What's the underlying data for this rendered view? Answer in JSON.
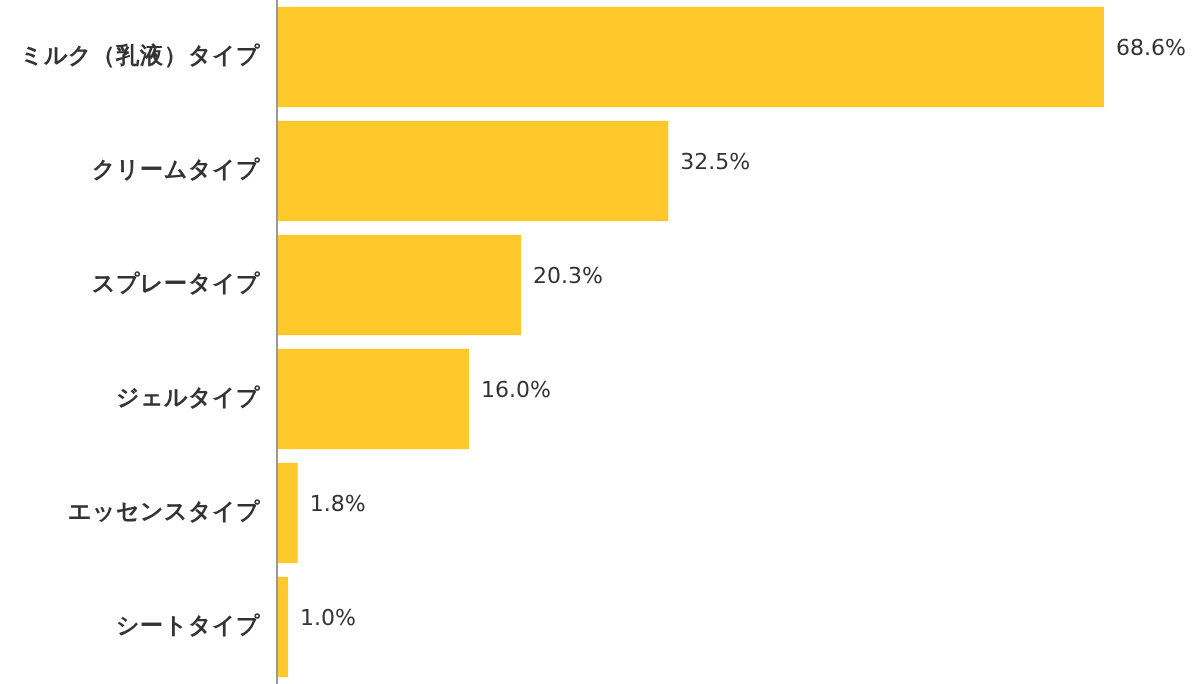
{
  "chart_data": {
    "type": "bar",
    "orientation": "horizontal",
    "categories": [
      "ミルク（乳液）タイプ",
      "クリームタイプ",
      "スプレータイプ",
      "ジェルタイプ",
      "エッセンスタイプ",
      "シートタイプ"
    ],
    "values": [
      68.6,
      32.5,
      20.3,
      16.0,
      1.8,
      1.0
    ],
    "value_labels": [
      "68.6%",
      "32.5%",
      "20.3%",
      "16.0%",
      "1.8%",
      "1.0%"
    ],
    "color": "#ffc92b"
  }
}
